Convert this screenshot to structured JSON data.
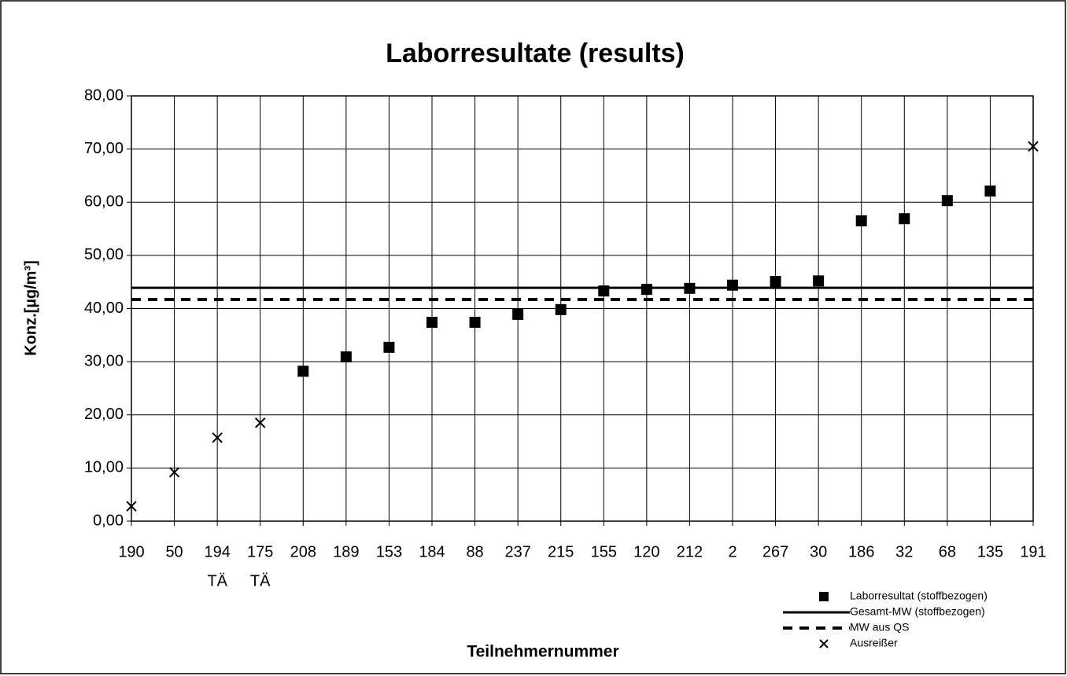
{
  "chart_data": {
    "type": "scatter",
    "title": "Laborresultate (results)",
    "y_label": "Konz.[µg/m³]",
    "x_label": "Teilnehmernummer",
    "categories": [
      "190",
      "50",
      "194",
      "175",
      "208",
      "189",
      "153",
      "184",
      "88",
      "237",
      "215",
      "155",
      "120",
      "212",
      "2",
      "267",
      "30",
      "186",
      "32",
      "68",
      "135",
      "191"
    ],
    "sublabels": [
      null,
      null,
      "TÄ",
      "TÄ",
      null,
      null,
      null,
      null,
      null,
      null,
      null,
      null,
      null,
      null,
      null,
      null,
      null,
      null,
      null,
      null,
      null,
      null
    ],
    "ylim": [
      0,
      80
    ],
    "yticks": [
      {
        "value": 0,
        "label": "0,00"
      },
      {
        "value": 10,
        "label": "10,00"
      },
      {
        "value": 20,
        "label": "20,00"
      },
      {
        "value": 30,
        "label": "30,00"
      },
      {
        "value": 40,
        "label": "40,00"
      },
      {
        "value": 50,
        "label": "50,00"
      },
      {
        "value": 60,
        "label": "60,00"
      },
      {
        "value": 70,
        "label": "70,00"
      },
      {
        "value": 80,
        "label": "80,00"
      }
    ],
    "grid": true,
    "legend": "lower right",
    "series": [
      {
        "name": "Laborresultat (stoffbezogen)",
        "marker": "square",
        "color": "#000000",
        "values": [
          null,
          null,
          null,
          null,
          28.2,
          30.9,
          32.7,
          37.4,
          37.4,
          38.9,
          39.8,
          43.3,
          43.6,
          43.8,
          44.4,
          45.1,
          45.2,
          56.5,
          56.9,
          60.3,
          62.1,
          null
        ]
      },
      {
        "name": "Gesamt-MW (stoffbezogen)",
        "marker": "solid-line",
        "color": "#000000",
        "value": 43.9
      },
      {
        "name": "MW aus QS",
        "marker": "dashed-line",
        "color": "#000000",
        "value": 41.7
      },
      {
        "name": "Ausreißer",
        "marker": "cross",
        "color": "#000000",
        "values": [
          2.8,
          9.2,
          15.7,
          18.5,
          null,
          null,
          null,
          null,
          null,
          null,
          null,
          null,
          null,
          null,
          null,
          null,
          null,
          null,
          null,
          null,
          null,
          70.5
        ]
      }
    ]
  }
}
